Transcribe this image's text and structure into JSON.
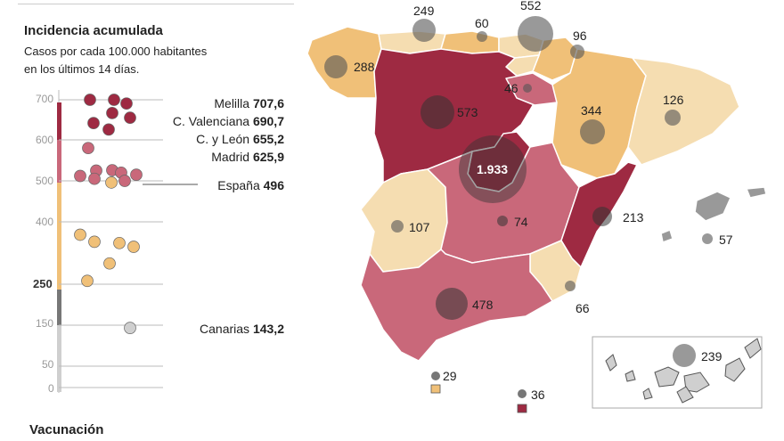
{
  "title": "Incidencia acumulada",
  "subtitle_line1": "Casos por cada 100.000 habitantes",
  "subtitle_line2": "en los últimos 14 días.",
  "footer_title": "Vacunación",
  "axis_ticks": [
    {
      "label": "700",
      "bold": false
    },
    {
      "label": "600",
      "bold": false
    },
    {
      "label": "500",
      "bold": false
    },
    {
      "label": "400",
      "bold": false
    },
    {
      "label": "250",
      "bold": true
    },
    {
      "label": "150",
      "bold": false
    },
    {
      "label": "50",
      "bold": false
    },
    {
      "label": "0",
      "bold": false
    }
  ],
  "color_scale": {
    "very_high": "#9e2a42",
    "high": "#c9687a",
    "medium": "#f0c078",
    "low": "#f5ddb1",
    "grey_dark": "#777777",
    "grey_light": "#cfcfcf",
    "circle": "#555555"
  },
  "highlighted": [
    {
      "name": "Melilla",
      "value": "707,6"
    },
    {
      "name": "C. Valenciana",
      "value": "690,7"
    },
    {
      "name": "C. y León",
      "value": "655,2"
    },
    {
      "name": "Madrid",
      "value": "625,9"
    },
    {
      "name": "España",
      "value": "496"
    },
    {
      "name": "Canarias",
      "value": "143,2"
    }
  ],
  "dot_values": [
    707.6,
    701,
    690.7,
    667,
    655.2,
    642,
    625.9,
    580,
    526,
    525,
    520,
    515,
    512,
    505,
    500,
    496,
    369,
    352,
    349,
    340,
    300,
    258,
    143.2
  ],
  "map_labels": [
    {
      "region": "Cantabria",
      "value": "249"
    },
    {
      "region": "País Vasco",
      "value": "60"
    },
    {
      "region": "Navarra",
      "value": "552"
    },
    {
      "region": "La Rioja",
      "value": "96"
    },
    {
      "region": "Galicia",
      "value": "288"
    },
    {
      "region": "Castilla y León",
      "value": "573"
    },
    {
      "region": "Soria",
      "value": "46"
    },
    {
      "region": "Aragón",
      "value": "344"
    },
    {
      "region": "Cataluña",
      "value": "126"
    },
    {
      "region": "Madrid",
      "value": "1.933"
    },
    {
      "region": "Extremadura",
      "value": "107"
    },
    {
      "region": "Castilla-La Mancha",
      "value": "74"
    },
    {
      "region": "C. Valenciana",
      "value": "213"
    },
    {
      "region": "Baleares",
      "value": "57"
    },
    {
      "region": "Murcia",
      "value": "66"
    },
    {
      "region": "Andalucía",
      "value": "478"
    },
    {
      "region": "Ceuta",
      "value": "29"
    },
    {
      "region": "Melilla",
      "value": "36"
    },
    {
      "region": "Canarias",
      "value": "239"
    }
  ]
}
